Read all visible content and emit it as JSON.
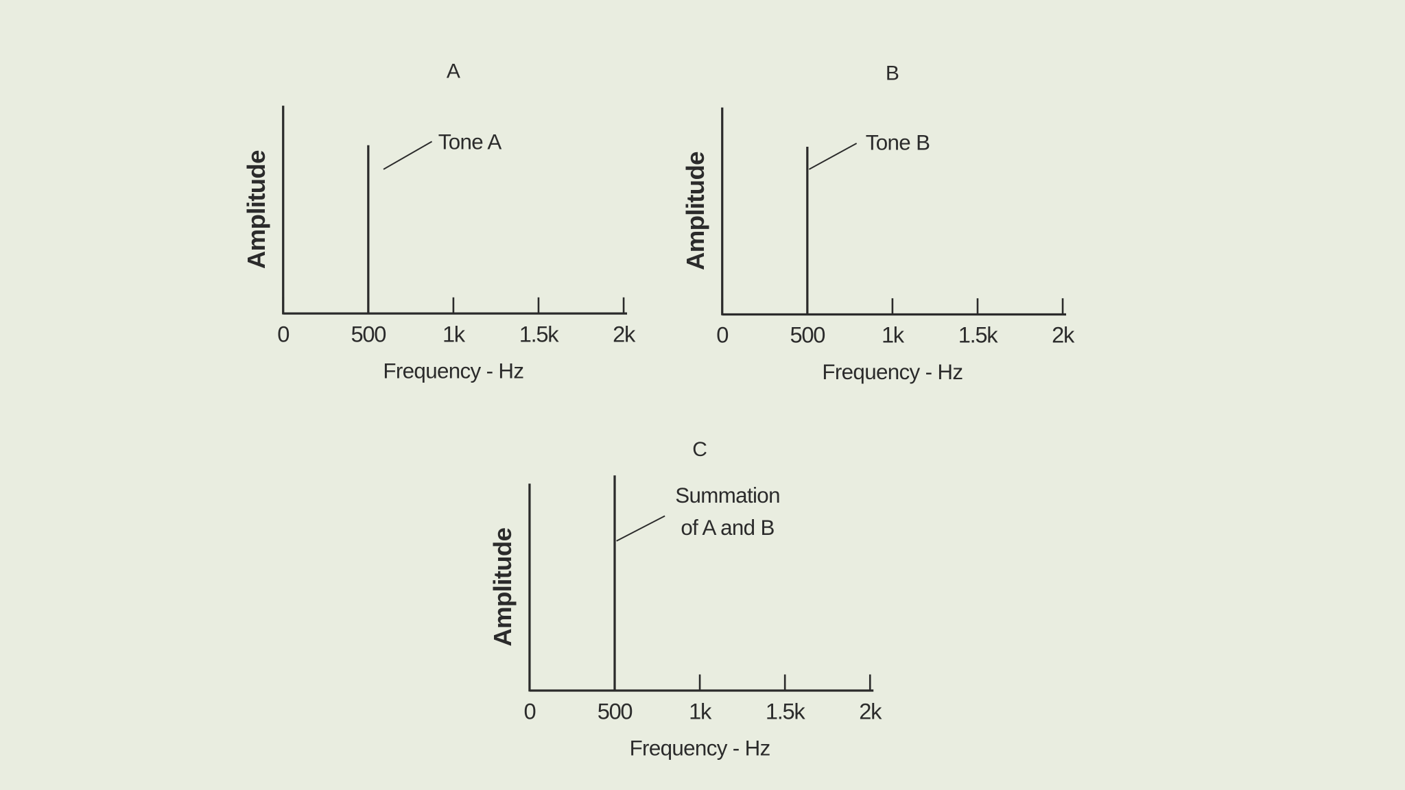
{
  "chart_data": [
    {
      "type": "stem",
      "title": "A",
      "x_label": "Frequency - Hz",
      "y_label": "Amplitude",
      "x": [
        500
      ],
      "values": [
        0.81
      ],
      "color": "#2b2b2b",
      "xlim": [
        0,
        2020
      ],
      "xticks": [
        0,
        500,
        {
          "value": 1000,
          "label": "1k"
        },
        {
          "value": 1500,
          "label": "1.5k"
        },
        {
          "value": 2000,
          "label": "2k"
        }
      ],
      "ylim": [
        0,
        1
      ],
      "annotation": [
        "Tone A"
      ]
    },
    {
      "type": "stem",
      "title": "B",
      "x_label": "Frequency - Hz",
      "y_label": "Amplitude",
      "x": [
        500
      ],
      "values": [
        0.81
      ],
      "color": "#2b2b2b",
      "xlim": [
        0,
        2020
      ],
      "xticks": [
        0,
        500,
        {
          "value": 1000,
          "label": "1k"
        },
        {
          "value": 1500,
          "label": "1.5k"
        },
        {
          "value": 2000,
          "label": "2k"
        }
      ],
      "ylim": [
        0,
        1
      ],
      "annotation": [
        "Tone B"
      ]
    },
    {
      "type": "stem",
      "title": "C",
      "x_label": "Frequency - Hz",
      "y_label": "Amplitude",
      "x": [
        500
      ],
      "values": [
        1.04
      ],
      "color": "#2b2b2b",
      "xlim": [
        0,
        2020
      ],
      "xticks": [
        0,
        500,
        {
          "value": 1000,
          "label": "1k"
        },
        {
          "value": 1500,
          "label": "1.5k"
        },
        {
          "value": 2000,
          "label": "2k"
        }
      ],
      "ylim": [
        0,
        1
      ],
      "annotation": [
        "Summation",
        "of A and B"
      ]
    }
  ]
}
